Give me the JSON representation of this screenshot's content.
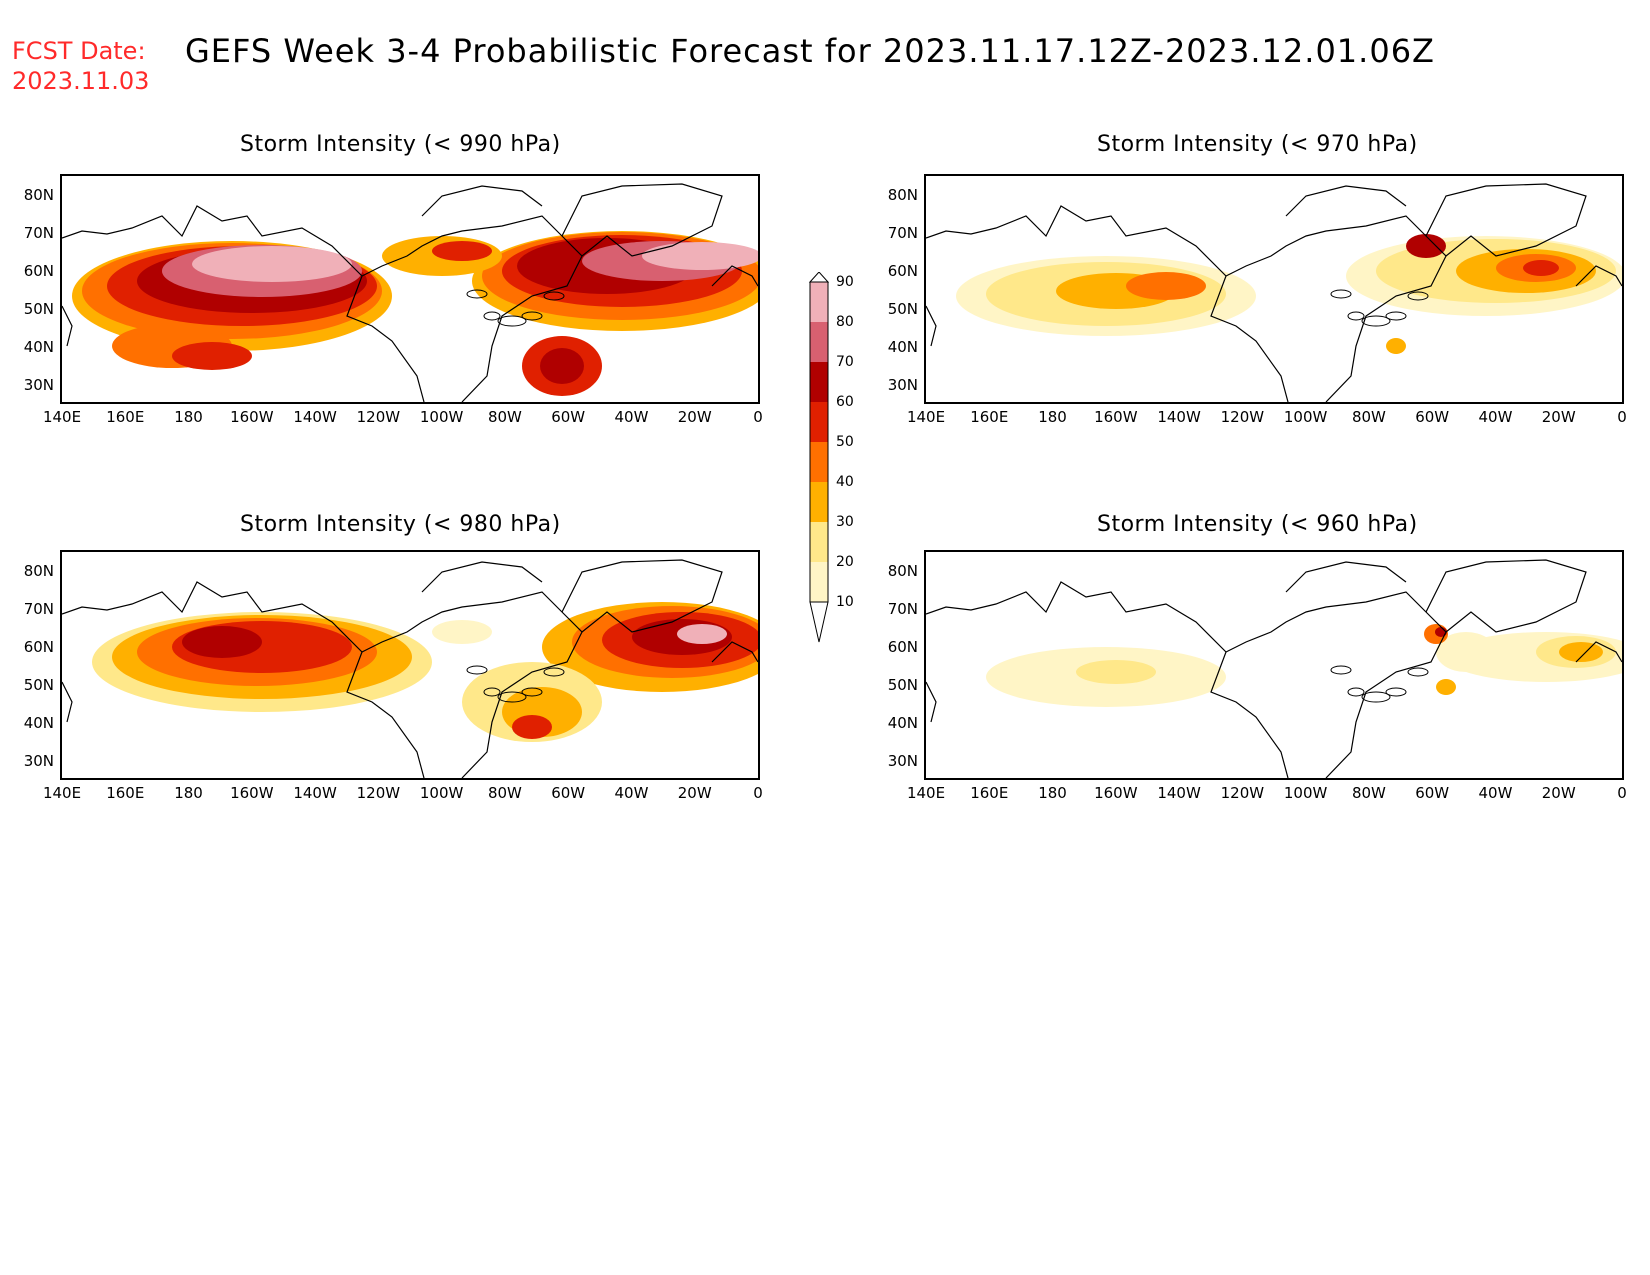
{
  "header": {
    "fcst_label": "FCST Date:",
    "fcst_date": "2023.11.03",
    "title": "GEFS Week 3-4 Probabilistic Forecast for 2023.11.17.12Z-2023.12.01.06Z"
  },
  "axes": {
    "lat_ticks": [
      "80N",
      "70N",
      "60N",
      "50N",
      "40N",
      "30N"
    ],
    "lon_ticks": [
      "140E",
      "160E",
      "180",
      "160W",
      "140W",
      "120W",
      "100W",
      "80W",
      "60W",
      "40W",
      "20W",
      "0"
    ]
  },
  "panels": [
    {
      "id": "p990",
      "title": "Storm Intensity (< 990 hPa)"
    },
    {
      "id": "p970",
      "title": "Storm Intensity (< 970 hPa)"
    },
    {
      "id": "p980",
      "title": "Storm Intensity (< 980 hPa)"
    },
    {
      "id": "p960",
      "title": "Storm Intensity (< 960 hPa)"
    }
  ],
  "colorbar": {
    "levels": [
      "10",
      "20",
      "30",
      "40",
      "50",
      "60",
      "70",
      "80",
      "90"
    ],
    "colors": [
      "#fff5c6",
      "#ffe88a",
      "#ffb000",
      "#ff7000",
      "#e02000",
      "#b00000",
      "#d86070",
      "#f0b0b8"
    ]
  },
  "legend_colors": {
    "title_red": "#ff2a2a"
  }
}
